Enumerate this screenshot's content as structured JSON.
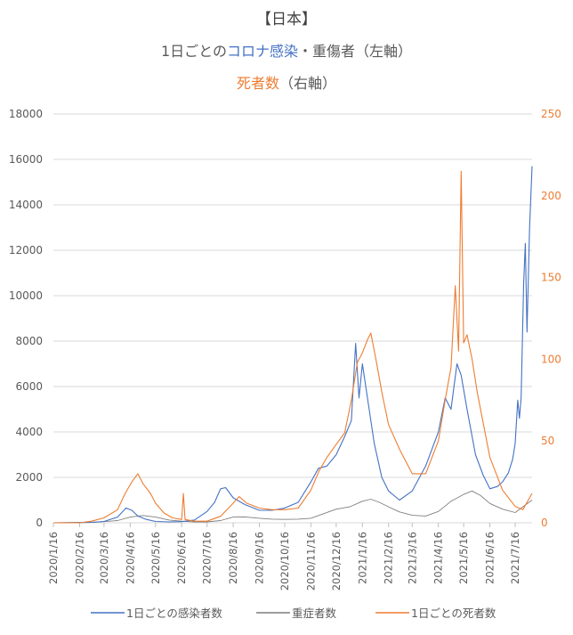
{
  "chart_data": {
    "type": "line",
    "title_line1": "【日本】",
    "title_line2_prefix": "1日ごとの",
    "title_line2_highlight": "コロナ感染",
    "title_line2_suffix": "・重傷者（左軸）",
    "title_line3_highlight": "死者数",
    "title_line3_suffix": "（右軸）",
    "y_left": {
      "min": 0,
      "max": 18000,
      "ticks": [
        "0",
        "2000",
        "4000",
        "6000",
        "8000",
        "10000",
        "12000",
        "14000",
        "16000",
        "18000"
      ]
    },
    "y_right": {
      "min": 0,
      "max": 250,
      "ticks": [
        "0",
        "50",
        "100",
        "150",
        "200",
        "250"
      ]
    },
    "x_ticks": [
      "2020/1/16",
      "2020/2/16",
      "2020/3/16",
      "2020/4/16",
      "2020/5/16",
      "2020/6/16",
      "2020/7/16",
      "2020/8/16",
      "2020/9/16",
      "2020/10/16",
      "2020/11/16",
      "2020/12/16",
      "2021/1/16",
      "2021/2/16",
      "2021/3/16",
      "2021/4/16",
      "2021/5/16",
      "2021/6/16",
      "2021/7/16"
    ],
    "x_range": [
      "2020/1/16",
      "2021/8/5"
    ],
    "legend_position": "bottom",
    "grid": true,
    "series": [
      {
        "name": "1日ごとの感染者数",
        "color": "#4472C4",
        "axis": "left",
        "points": [
          [
            "2020/1/16",
            0
          ],
          [
            "2020/2/16",
            10
          ],
          [
            "2020/3/1",
            20
          ],
          [
            "2020/3/16",
            60
          ],
          [
            "2020/4/1",
            250
          ],
          [
            "2020/4/11",
            650
          ],
          [
            "2020/4/18",
            550
          ],
          [
            "2020/4/25",
            300
          ],
          [
            "2020/5/5",
            150
          ],
          [
            "2020/5/16",
            60
          ],
          [
            "2020/6/1",
            40
          ],
          [
            "2020/6/16",
            50
          ],
          [
            "2020/7/1",
            120
          ],
          [
            "2020/7/16",
            500
          ],
          [
            "2020/7/25",
            900
          ],
          [
            "2020/8/1",
            1500
          ],
          [
            "2020/8/7",
            1550
          ],
          [
            "2020/8/16",
            1100
          ],
          [
            "2020/8/30",
            800
          ],
          [
            "2020/9/16",
            550
          ],
          [
            "2020/10/1",
            550
          ],
          [
            "2020/10/16",
            650
          ],
          [
            "2020/11/1",
            900
          ],
          [
            "2020/11/16",
            1800
          ],
          [
            "2020/11/25",
            2400
          ],
          [
            "2020/12/5",
            2500
          ],
          [
            "2020/12/16",
            3000
          ],
          [
            "2020/12/26",
            3800
          ],
          [
            "2021/1/3",
            4500
          ],
          [
            "2021/1/8",
            7900
          ],
          [
            "2021/1/12",
            5500
          ],
          [
            "2021/1/16",
            7000
          ],
          [
            "2021/1/22",
            5500
          ],
          [
            "2021/1/30",
            3500
          ],
          [
            "2021/2/8",
            2000
          ],
          [
            "2021/2/16",
            1400
          ],
          [
            "2021/3/1",
            1000
          ],
          [
            "2021/3/16",
            1400
          ],
          [
            "2021/4/1",
            2500
          ],
          [
            "2021/4/16",
            4000
          ],
          [
            "2021/4/24",
            5500
          ],
          [
            "2021/5/1",
            5000
          ],
          [
            "2021/5/8",
            7000
          ],
          [
            "2021/5/13",
            6500
          ],
          [
            "2021/5/20",
            5000
          ],
          [
            "2021/5/30",
            3000
          ],
          [
            "2021/6/8",
            2100
          ],
          [
            "2021/6/16",
            1500
          ],
          [
            "2021/6/25",
            1600
          ],
          [
            "2021/7/1",
            1800
          ],
          [
            "2021/7/8",
            2200
          ],
          [
            "2021/7/13",
            2800
          ],
          [
            "2021/7/16",
            3500
          ],
          [
            "2021/7/19",
            5400
          ],
          [
            "2021/7/21",
            4600
          ],
          [
            "2021/7/23",
            5500
          ],
          [
            "2021/7/26",
            10500
          ],
          [
            "2021/7/28",
            12300
          ],
          [
            "2021/7/30",
            8400
          ],
          [
            "2021/8/2",
            13000
          ],
          [
            "2021/8/5",
            15700
          ]
        ]
      },
      {
        "name": "重症者数",
        "color": "#7f7f7f",
        "axis": "left",
        "points": [
          [
            "2020/1/16",
            0
          ],
          [
            "2020/3/1",
            20
          ],
          [
            "2020/3/16",
            50
          ],
          [
            "2020/4/1",
            100
          ],
          [
            "2020/4/16",
            250
          ],
          [
            "2020/5/1",
            320
          ],
          [
            "2020/5/16",
            250
          ],
          [
            "2020/6/1",
            120
          ],
          [
            "2020/6/16",
            70
          ],
          [
            "2020/7/1",
            40
          ],
          [
            "2020/7/16",
            40
          ],
          [
            "2020/8/1",
            100
          ],
          [
            "2020/8/16",
            250
          ],
          [
            "2020/8/30",
            260
          ],
          [
            "2020/9/16",
            200
          ],
          [
            "2020/10/1",
            160
          ],
          [
            "2020/10/16",
            150
          ],
          [
            "2020/11/1",
            160
          ],
          [
            "2020/11/16",
            200
          ],
          [
            "2020/12/1",
            400
          ],
          [
            "2020/12/16",
            600
          ],
          [
            "2021/1/1",
            700
          ],
          [
            "2021/1/16",
            950
          ],
          [
            "2021/1/26",
            1040
          ],
          [
            "2021/2/5",
            900
          ],
          [
            "2021/2/16",
            700
          ],
          [
            "2021/3/1",
            480
          ],
          [
            "2021/3/16",
            330
          ],
          [
            "2021/4/1",
            300
          ],
          [
            "2021/4/16",
            500
          ],
          [
            "2021/5/1",
            950
          ],
          [
            "2021/5/16",
            1250
          ],
          [
            "2021/5/26",
            1400
          ],
          [
            "2021/6/5",
            1200
          ],
          [
            "2021/6/16",
            850
          ],
          [
            "2021/7/1",
            600
          ],
          [
            "2021/7/16",
            450
          ],
          [
            "2021/8/5",
            1000
          ]
        ]
      },
      {
        "name": "1日ごとの死者数",
        "color": "#ED7D31",
        "axis": "right",
        "points": [
          [
            "2020/1/16",
            0
          ],
          [
            "2020/2/16",
            0
          ],
          [
            "2020/3/1",
            1
          ],
          [
            "2020/3/16",
            3
          ],
          [
            "2020/4/1",
            8
          ],
          [
            "2020/4/10",
            18
          ],
          [
            "2020/4/18",
            25
          ],
          [
            "2020/4/25",
            30
          ],
          [
            "2020/5/1",
            24
          ],
          [
            "2020/5/10",
            18
          ],
          [
            "2020/5/16",
            12
          ],
          [
            "2020/5/26",
            6
          ],
          [
            "2020/6/5",
            3
          ],
          [
            "2020/6/16",
            2
          ],
          [
            "2020/6/18",
            18
          ],
          [
            "2020/6/20",
            2
          ],
          [
            "2020/7/1",
            1
          ],
          [
            "2020/7/16",
            1
          ],
          [
            "2020/8/1",
            4
          ],
          [
            "2020/8/16",
            12
          ],
          [
            "2020/8/23",
            16
          ],
          [
            "2020/9/1",
            12
          ],
          [
            "2020/9/16",
            9
          ],
          [
            "2020/10/1",
            8
          ],
          [
            "2020/10/16",
            8
          ],
          [
            "2020/11/1",
            9
          ],
          [
            "2020/11/16",
            20
          ],
          [
            "2020/11/26",
            32
          ],
          [
            "2020/12/5",
            40
          ],
          [
            "2020/12/16",
            48
          ],
          [
            "2020/12/26",
            55
          ],
          [
            "2021/1/3",
            75
          ],
          [
            "2021/1/10",
            98
          ],
          [
            "2021/1/16",
            104
          ],
          [
            "2021/1/22",
            112
          ],
          [
            "2021/1/26",
            116
          ],
          [
            "2021/2/1",
            100
          ],
          [
            "2021/2/8",
            80
          ],
          [
            "2021/2/16",
            60
          ],
          [
            "2021/3/1",
            45
          ],
          [
            "2021/3/16",
            30
          ],
          [
            "2021/4/1",
            30
          ],
          [
            "2021/4/16",
            50
          ],
          [
            "2021/4/24",
            75
          ],
          [
            "2021/5/1",
            95
          ],
          [
            "2021/5/6",
            145
          ],
          [
            "2021/5/10",
            105
          ],
          [
            "2021/5/13",
            215
          ],
          [
            "2021/5/16",
            110
          ],
          [
            "2021/5/20",
            115
          ],
          [
            "2021/5/26",
            100
          ],
          [
            "2021/6/1",
            80
          ],
          [
            "2021/6/16",
            40
          ],
          [
            "2021/7/1",
            20
          ],
          [
            "2021/7/16",
            10
          ],
          [
            "2021/7/25",
            8
          ],
          [
            "2021/8/5",
            18
          ]
        ]
      }
    ]
  }
}
